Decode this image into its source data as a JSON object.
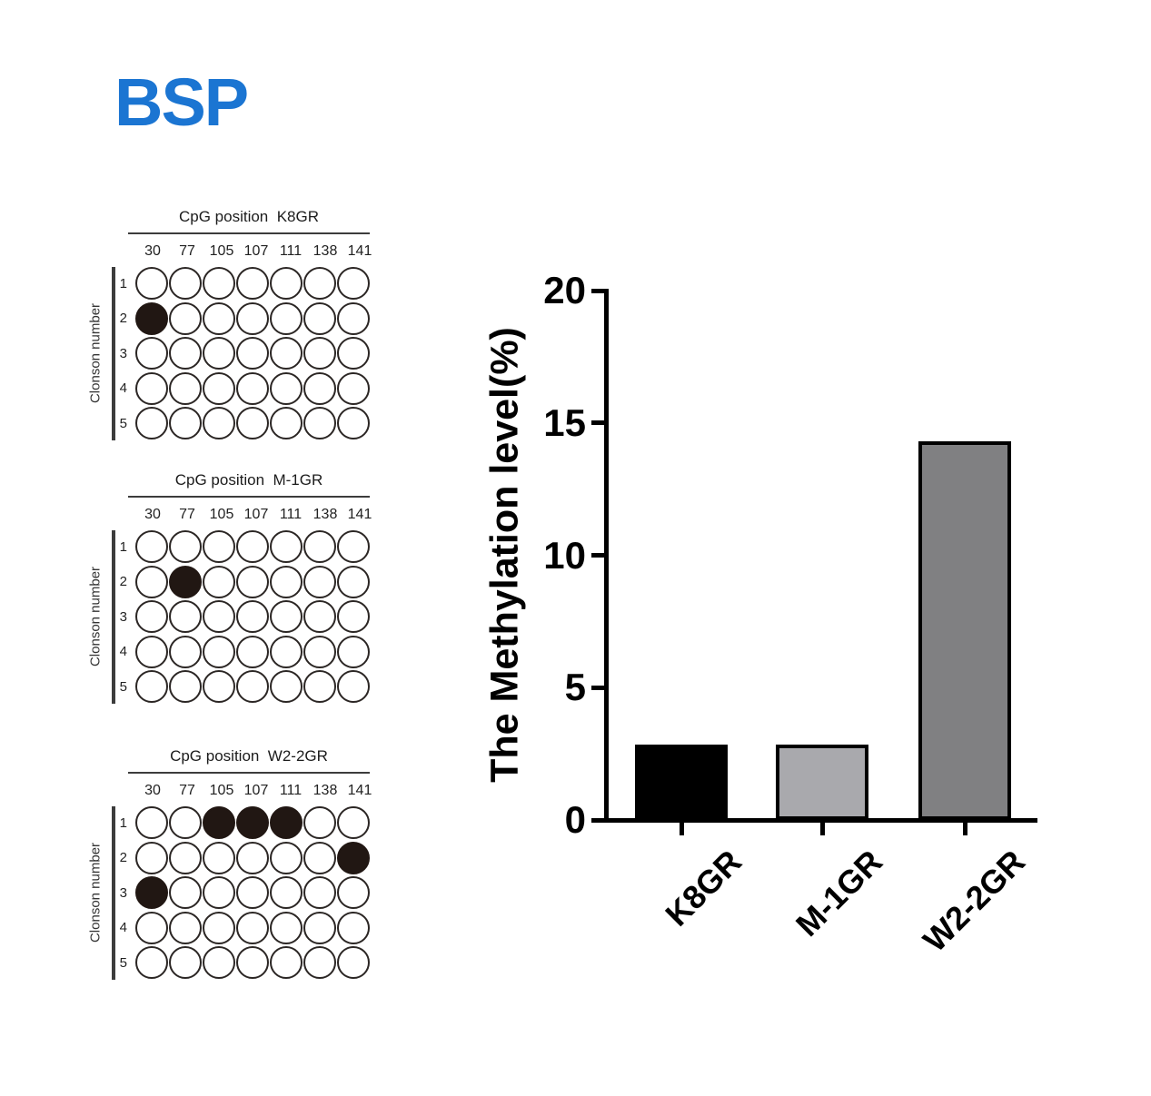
{
  "page": {
    "title": "BSP"
  },
  "colors": {
    "title_blue": "#1b75d2",
    "circle_stroke": "#2b2624",
    "circle_fill_methylated": "#211713",
    "circle_fill_unmethylated": "#ffffff",
    "axis_black": "#000000"
  },
  "cpg_panels": {
    "axis_label": "Clonson number",
    "header_prefix": "CpG position",
    "columns": [
      "30",
      "77",
      "105",
      "107",
      "111",
      "138",
      "141"
    ],
    "rows": [
      "1",
      "2",
      "3",
      "4",
      "5"
    ],
    "panels": [
      {
        "sample": "K8GR",
        "filled": [
          [
            2,
            1
          ]
        ]
      },
      {
        "sample": "M-1GR",
        "filled": [
          [
            2,
            2
          ]
        ]
      },
      {
        "sample": "W2-2GR",
        "filled": [
          [
            1,
            3
          ],
          [
            1,
            4
          ],
          [
            1,
            5
          ],
          [
            2,
            7
          ],
          [
            3,
            1
          ]
        ]
      }
    ]
  },
  "chart_data": {
    "type": "bar",
    "title": "",
    "categories": [
      "K8GR",
      "M-1GR",
      "W2-2GR"
    ],
    "values": [
      2.86,
      2.86,
      14.29
    ],
    "xlabel": "",
    "ylabel": "The Methylation level(%)",
    "ylim": [
      0,
      20
    ],
    "yticks": [
      20,
      15,
      10,
      5,
      0
    ],
    "bar_colors": [
      "#000000",
      "#a9a9ad",
      "#808082"
    ],
    "bar_border_color": "#000000",
    "grid": false,
    "legend": false
  }
}
